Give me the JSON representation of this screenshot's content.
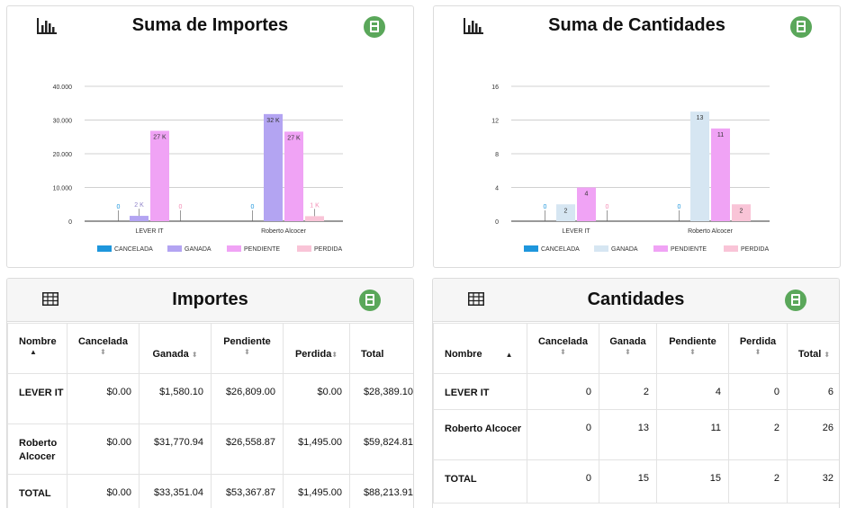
{
  "colors": {
    "cancelada": "#1e96dc",
    "ganada_importes": "#b3a4f2",
    "ganada_cantidades": "#d6e6f2",
    "pendiente": "#f0a3f5",
    "perdida": "#f9c4d7",
    "export": "#5aa75a"
  },
  "importes_chart": {
    "title": "Suma de Importes",
    "icon": "bar-chart-icon",
    "export_icon": "export-sheet-icon",
    "chart_data": {
      "type": "bar",
      "categories": [
        "LEVER IT",
        "Roberto Alcocer"
      ],
      "series": [
        {
          "name": "CANCELADA",
          "values": [
            0,
            0
          ],
          "labels": [
            "0",
            "0"
          ]
        },
        {
          "name": "GANADA",
          "values": [
            1580.1,
            31770.94
          ],
          "labels": [
            "2 K",
            "32 K"
          ]
        },
        {
          "name": "PENDIENTE",
          "values": [
            26809.0,
            26558.87
          ],
          "labels": [
            "27 K",
            "27 K"
          ]
        },
        {
          "name": "PERDIDA",
          "values": [
            0,
            1495.0
          ],
          "labels": [
            "0",
            "1 K"
          ]
        }
      ],
      "ylim": [
        0,
        40000
      ],
      "yticks": [
        0,
        10000,
        20000,
        30000,
        40000
      ],
      "ytick_labels": [
        "0",
        "10.000",
        "20.000",
        "30.000",
        "40.000"
      ],
      "legend": "bottom",
      "grid": true
    }
  },
  "cantidades_chart": {
    "title": "Suma de Cantidades",
    "icon": "bar-chart-icon",
    "export_icon": "export-sheet-icon",
    "chart_data": {
      "type": "bar",
      "categories": [
        "LEVER IT",
        "Roberto Alcocer"
      ],
      "series": [
        {
          "name": "CANCELADA",
          "values": [
            0,
            0
          ],
          "labels": [
            "0",
            "0"
          ]
        },
        {
          "name": "GANADA",
          "values": [
            2,
            13
          ],
          "labels": [
            "2",
            "13"
          ]
        },
        {
          "name": "PENDIENTE",
          "values": [
            4,
            11
          ],
          "labels": [
            "4",
            "11"
          ]
        },
        {
          "name": "PERDIDA",
          "values": [
            0,
            2
          ],
          "labels": [
            "0",
            "2"
          ]
        }
      ],
      "ylim": [
        0,
        16
      ],
      "yticks": [
        0,
        4,
        8,
        12,
        16
      ],
      "ytick_labels": [
        "0",
        "4",
        "8",
        "12",
        "16"
      ],
      "legend": "bottom",
      "grid": true
    }
  },
  "importes_table": {
    "title": "Importes",
    "headers": [
      "Nombre",
      "Cancelada",
      "Ganada",
      "Pendiente",
      "Perdida",
      "Total"
    ],
    "rows": [
      [
        "LEVER IT",
        "$0.00",
        "$1,580.10",
        "$26,809.00",
        "$0.00",
        "$28,389.10"
      ],
      [
        "Roberto Alcocer",
        "$0.00",
        "$31,770.94",
        "$26,558.87",
        "$1,495.00",
        "$59,824.81"
      ],
      [
        "TOTAL",
        "$0.00",
        "$33,351.04",
        "$53,367.87",
        "$1,495.00",
        "$88,213.91"
      ]
    ]
  },
  "cantidades_table": {
    "title": "Cantidades",
    "headers": [
      "Nombre",
      "Cancelada",
      "Ganada",
      "Pendiente",
      "Perdida",
      "Total"
    ],
    "rows": [
      [
        "LEVER IT",
        "0",
        "2",
        "4",
        "0",
        "6"
      ],
      [
        "Roberto Alcocer",
        "0",
        "13",
        "11",
        "2",
        "26"
      ],
      [
        "TOTAL",
        "0",
        "15",
        "15",
        "2",
        "32"
      ]
    ]
  }
}
